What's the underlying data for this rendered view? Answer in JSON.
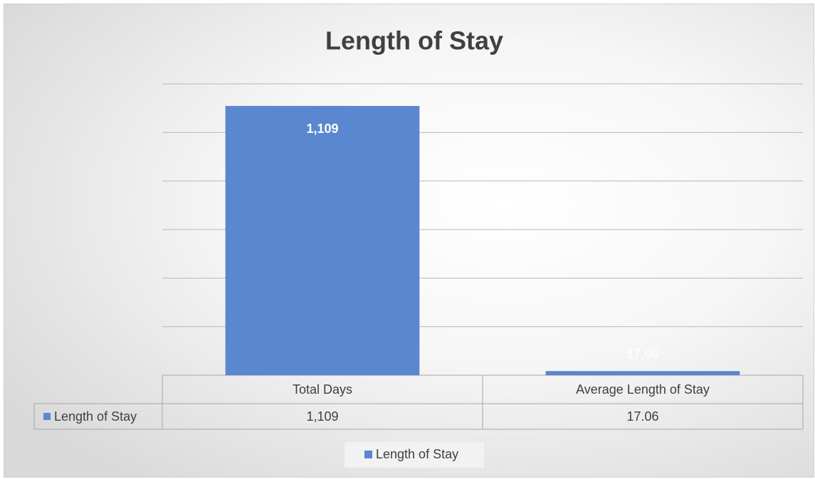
{
  "chart_data": {
    "type": "bar",
    "title": "Length of Stay",
    "categories": [
      "Total Days",
      "Average Length of Stay"
    ],
    "series": [
      {
        "name": "Length of Stay",
        "color": "#5b86d0",
        "values": [
          1109,
          17.06
        ],
        "value_labels": [
          "1,109",
          "17.06"
        ]
      }
    ],
    "ylim": [
      0,
      1200
    ],
    "yticks": [
      0,
      200,
      400,
      600,
      800,
      1000,
      1200
    ],
    "grid": true,
    "legend": "bottom"
  }
}
